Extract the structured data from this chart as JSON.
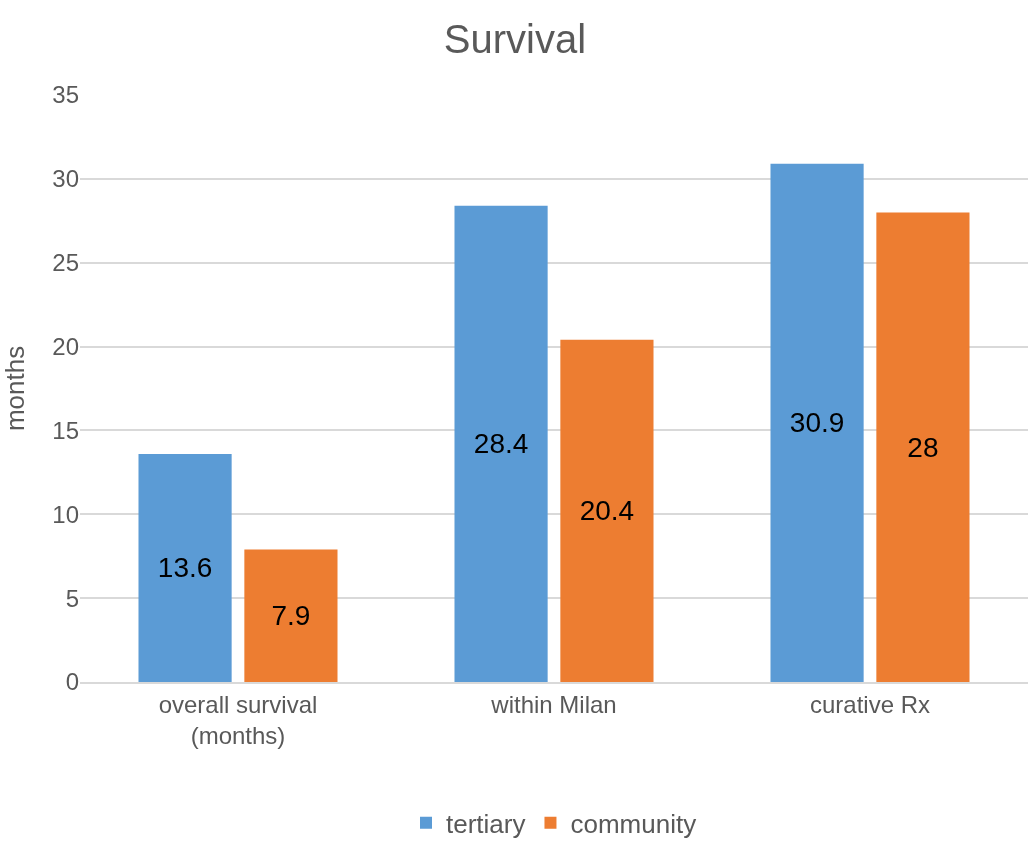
{
  "chart_data": {
    "type": "bar",
    "title": "Survival",
    "ylabel": "months",
    "categories": [
      "overall survival (months)",
      "within Milan",
      "curative Rx"
    ],
    "series": [
      {
        "name": "tertiary",
        "color": "#5b9bd5",
        "values": [
          13.6,
          28.4,
          30.9
        ]
      },
      {
        "name": "community",
        "color": "#ed7d31",
        "values": [
          7.9,
          20.4,
          28
        ]
      }
    ],
    "ylim": [
      0,
      35
    ],
    "yticks": [
      0,
      5,
      10,
      15,
      20,
      25,
      30,
      35
    ],
    "grid": "y",
    "legend": "bottom",
    "data_labels": true
  }
}
